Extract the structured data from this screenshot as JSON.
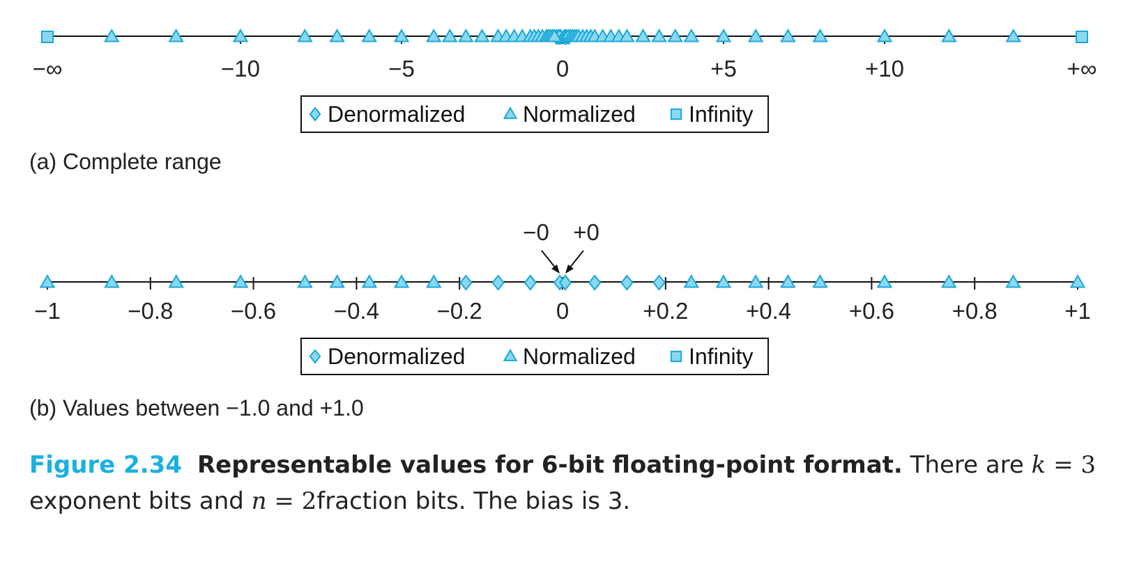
{
  "colors": {
    "marker_stroke": "#1aa8d8",
    "marker_fill": "#8ad8f0",
    "axis": "#111111",
    "figure_label": "#1ab0e0"
  },
  "chart_data": [
    {
      "id": "a",
      "type": "scatter",
      "caption": "(a) Complete range",
      "xlim": [
        -15,
        15
      ],
      "tick_values": [
        -10,
        -5,
        0,
        5,
        10
      ],
      "tick_labels": [
        {
          "x": "-inf",
          "label": "−∞"
        },
        {
          "x": -10,
          "label": "−10"
        },
        {
          "x": -5,
          "label": "−5"
        },
        {
          "x": 0,
          "label": "0"
        },
        {
          "x": 5,
          "label": "+5"
        },
        {
          "x": 10,
          "label": "+10"
        },
        {
          "x": "+inf",
          "label": "+∞"
        }
      ],
      "legend": {
        "placement": "bottom-center",
        "entries": [
          "Denormalized",
          "Normalized",
          "Infinity"
        ]
      },
      "series": [
        {
          "name": "Denormalized",
          "marker": "diamond",
          "values": [
            -0.1875,
            -0.125,
            -0.0625,
            0,
            0,
            0.0625,
            0.125,
            0.1875
          ]
        },
        {
          "name": "Normalized",
          "marker": "triangle",
          "values": [
            -14,
            -12,
            -10,
            -8,
            -7,
            -6,
            -5,
            -4,
            -3.5,
            -3,
            -2.5,
            -2,
            -1.75,
            -1.5,
            -1.25,
            -1,
            -0.875,
            -0.75,
            -0.625,
            -0.5,
            -0.4375,
            -0.375,
            -0.3125,
            -0.25,
            0.25,
            0.3125,
            0.375,
            0.4375,
            0.5,
            0.625,
            0.75,
            0.875,
            1,
            1.25,
            1.5,
            1.75,
            2,
            2.5,
            3,
            3.5,
            4,
            5,
            6,
            7,
            8,
            10,
            12,
            14
          ]
        },
        {
          "name": "Infinity",
          "marker": "square",
          "values": [
            "-inf",
            "+inf"
          ]
        }
      ]
    },
    {
      "id": "b",
      "type": "scatter",
      "caption": "(b) Values between −1.0 and +1.0",
      "xlim": [
        -1,
        1
      ],
      "tick_values": [
        -1,
        -0.8,
        -0.6,
        -0.4,
        -0.2,
        0,
        0.2,
        0.4,
        0.6,
        0.8,
        1
      ],
      "tick_labels": [
        {
          "x": -1,
          "label": "−1"
        },
        {
          "x": -0.8,
          "label": "−0.8"
        },
        {
          "x": -0.6,
          "label": "−0.6"
        },
        {
          "x": -0.4,
          "label": "−0.4"
        },
        {
          "x": -0.2,
          "label": "−0.2"
        },
        {
          "x": 0,
          "label": "0"
        },
        {
          "x": 0.2,
          "label": "+0.2"
        },
        {
          "x": 0.4,
          "label": "+0.4"
        },
        {
          "x": 0.6,
          "label": "+0.6"
        },
        {
          "x": 0.8,
          "label": "+0.8"
        },
        {
          "x": 1,
          "label": "+1"
        }
      ],
      "annotations": [
        {
          "text": "−0",
          "x": 0,
          "side": "left"
        },
        {
          "text": "+0",
          "x": 0,
          "side": "right"
        }
      ],
      "legend": {
        "placement": "bottom-center",
        "entries": [
          "Denormalized",
          "Normalized",
          "Infinity"
        ]
      },
      "series": [
        {
          "name": "Denormalized",
          "marker": "diamond",
          "values": [
            -0.1875,
            -0.125,
            -0.0625,
            0,
            0,
            0.0625,
            0.125,
            0.1875
          ]
        },
        {
          "name": "Normalized",
          "marker": "triangle",
          "values": [
            -1,
            -0.875,
            -0.75,
            -0.625,
            -0.5,
            -0.4375,
            -0.375,
            -0.3125,
            -0.25,
            0.25,
            0.3125,
            0.375,
            0.4375,
            0.5,
            0.625,
            0.75,
            0.875,
            1
          ]
        },
        {
          "name": "Infinity",
          "marker": "square",
          "values": []
        }
      ]
    }
  ],
  "caption": {
    "label": "Figure 2.34",
    "title": "Representable values for 6-bit floating-point format.",
    "text_1": "There are",
    "k_var": "k",
    "k_eq": " = 3",
    "text_2": "exponent bits and",
    "n_var": "n",
    "n_eq": " = 2",
    "text_3": "fraction bits. The bias is 3."
  }
}
